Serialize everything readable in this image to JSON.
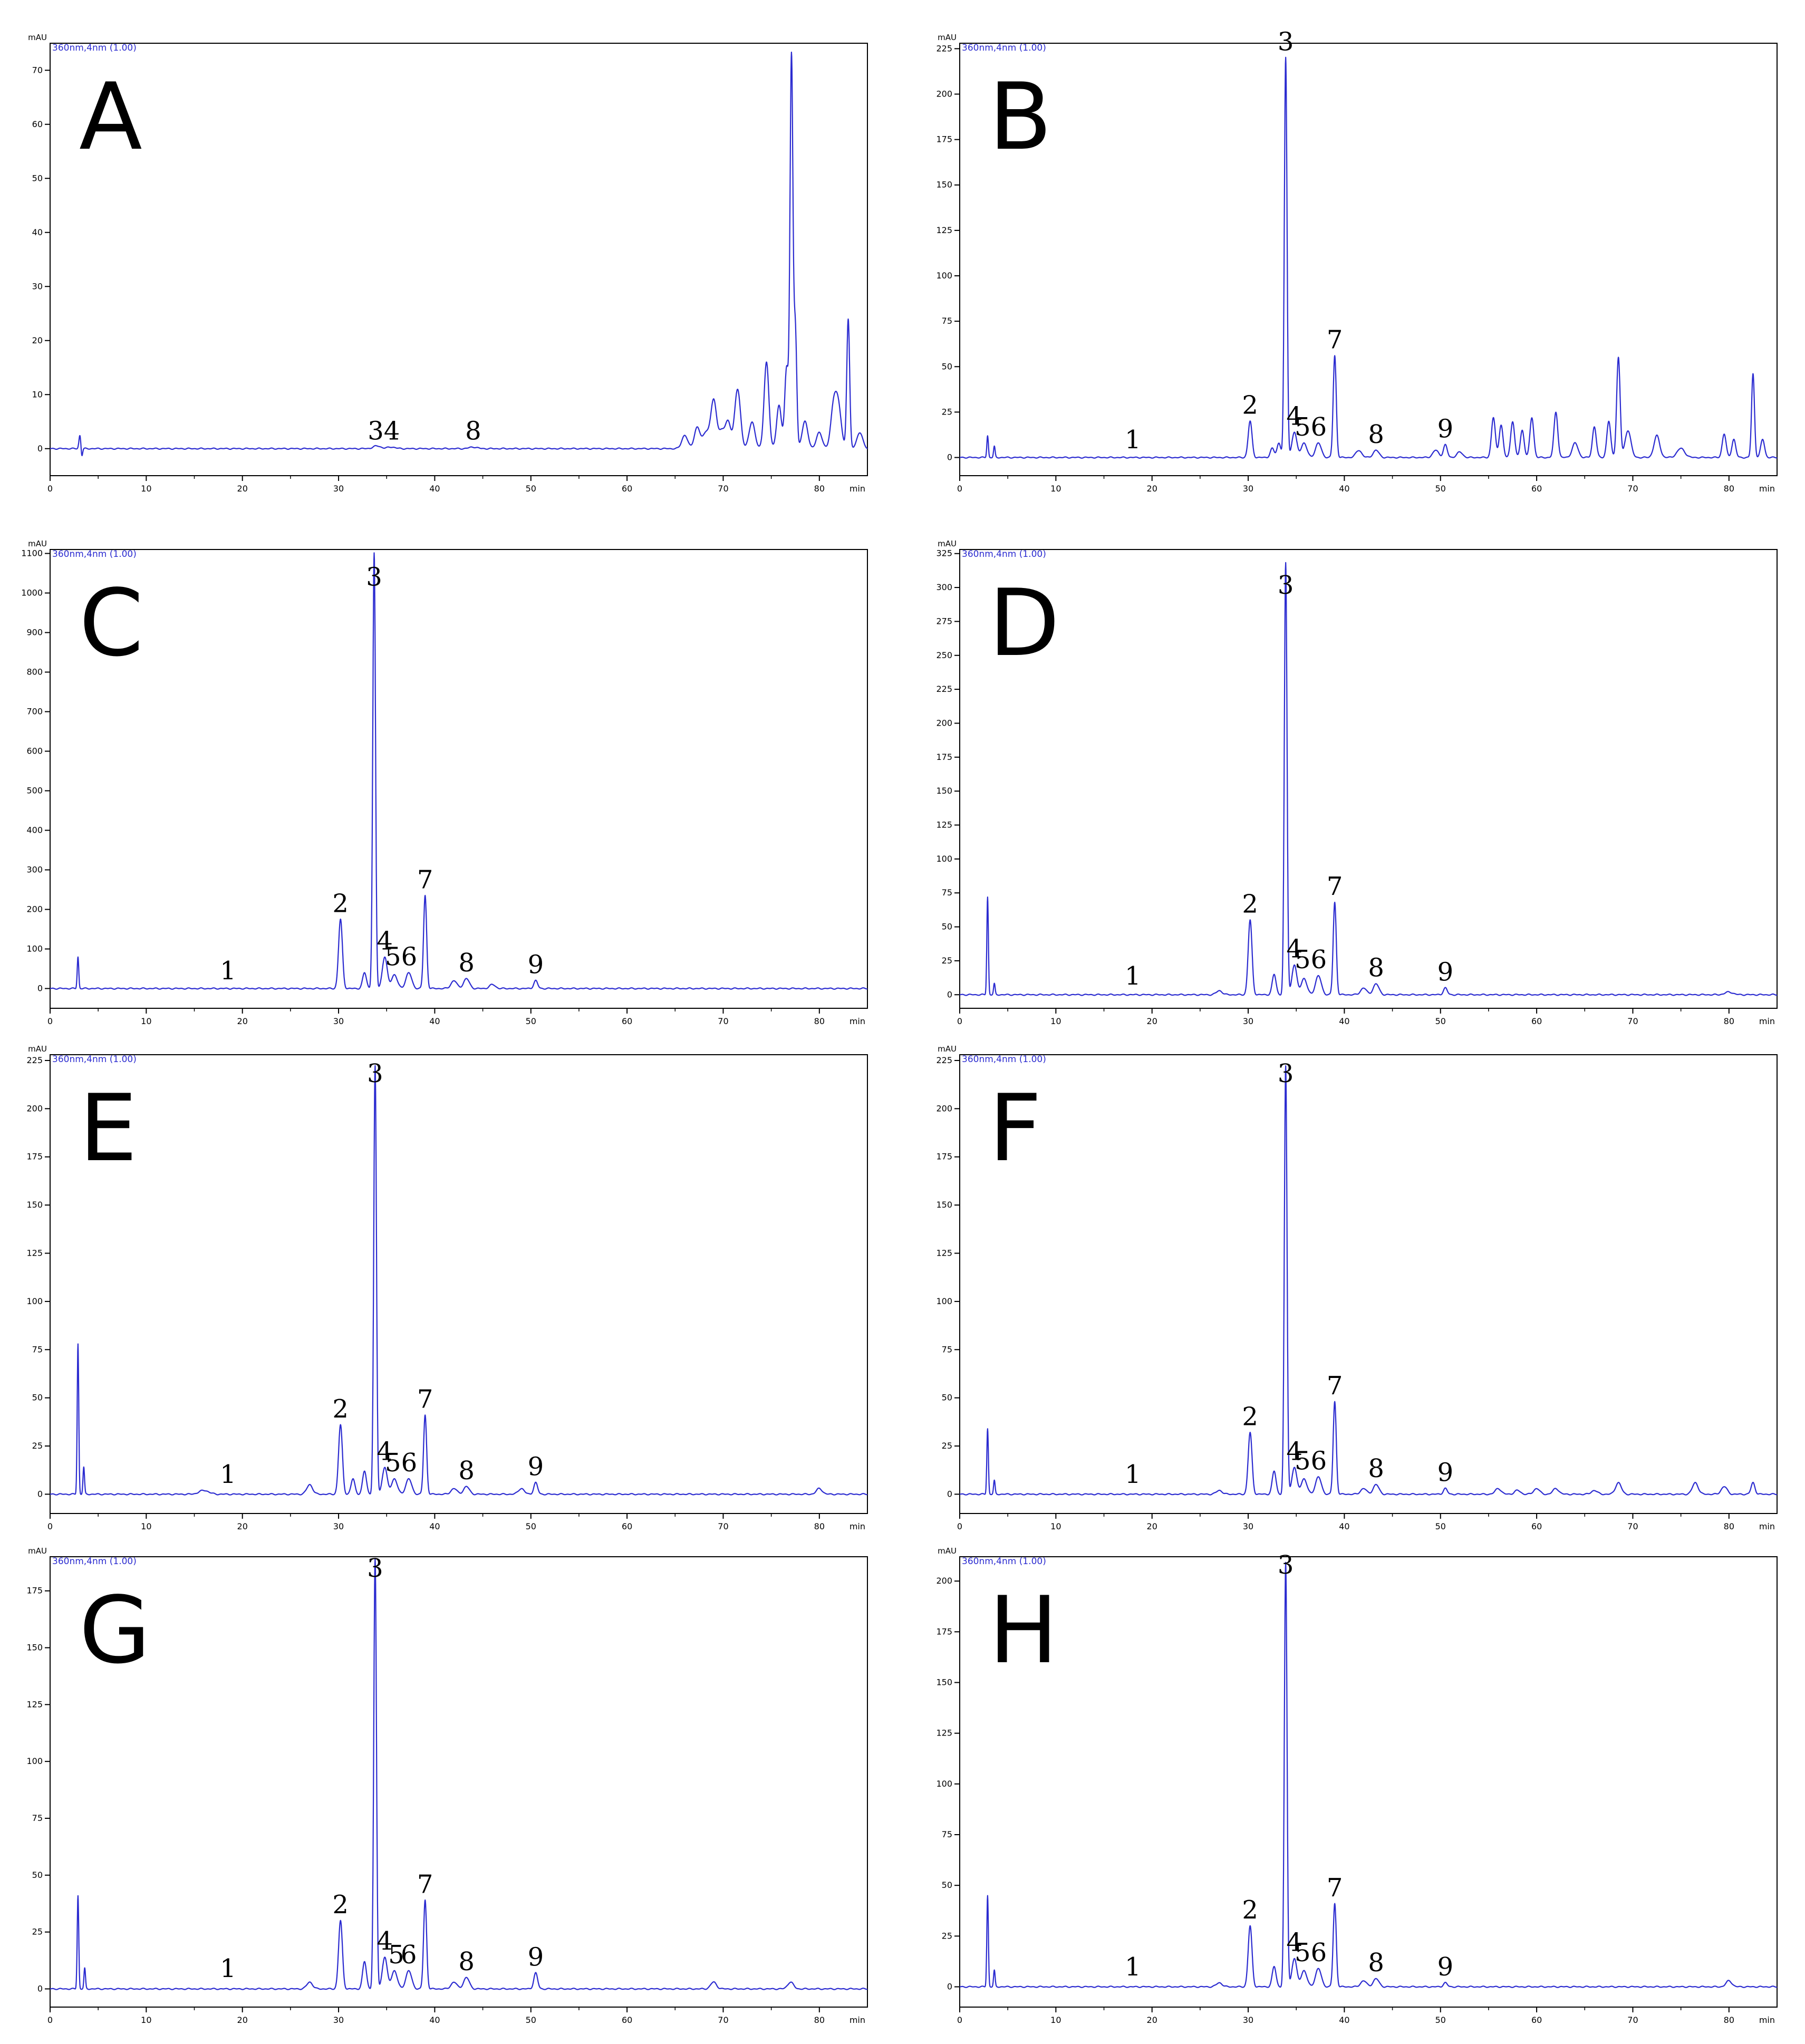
{
  "chart_data": [
    {
      "type": "line",
      "panel_label": "A",
      "ylabel": "mAU",
      "xlabel": "min",
      "channel": "360nm,4nm (1.00)",
      "ylim": [
        -5,
        75
      ],
      "yticks": [
        0,
        10,
        20,
        30,
        40,
        50,
        60,
        70
      ],
      "xlim": [
        0,
        85
      ],
      "xticks": [
        0,
        10,
        20,
        30,
        40,
        50,
        60,
        70,
        80
      ],
      "baseline": 0,
      "peaks": [
        [
          3.1,
          2.5,
          0.1
        ],
        [
          3.3,
          -1.5,
          0.08
        ],
        [
          34.0,
          0.5,
          0.4
        ],
        [
          35.5,
          0.3,
          0.4
        ],
        [
          44.0,
          0.3,
          0.4
        ],
        [
          66.0,
          2.5,
          0.3
        ],
        [
          67.3,
          4,
          0.3
        ],
        [
          68.2,
          3,
          0.3
        ],
        [
          69.0,
          9,
          0.3
        ],
        [
          69.8,
          3,
          0.3
        ],
        [
          70.5,
          5,
          0.3
        ],
        [
          71.5,
          11,
          0.3
        ],
        [
          73.0,
          5,
          0.3
        ],
        [
          74.5,
          16,
          0.25
        ],
        [
          75.8,
          8,
          0.25
        ],
        [
          76.6,
          15,
          0.2
        ],
        [
          77.1,
          72,
          0.15
        ],
        [
          77.5,
          22,
          0.15
        ],
        [
          78.5,
          5,
          0.3
        ],
        [
          80.0,
          3,
          0.3
        ],
        [
          81.5,
          8,
          0.3
        ],
        [
          82.0,
          7,
          0.3
        ],
        [
          83.0,
          24,
          0.15
        ],
        [
          84.2,
          3,
          0.3
        ]
      ],
      "annotations": [
        {
          "text": "34",
          "x": 34.7,
          "y": 0.3
        },
        {
          "text": "8",
          "x": 44.0,
          "y": 0.3
        }
      ]
    },
    {
      "type": "line",
      "panel_label": "B",
      "ylabel": "mAU",
      "xlabel": "min",
      "channel": "360nm,4nm (1.00)",
      "ylim": [
        -10,
        228
      ],
      "yticks": [
        0,
        25,
        50,
        75,
        100,
        125,
        150,
        175,
        200,
        225
      ],
      "xlim": [
        0,
        85
      ],
      "xticks": [
        0,
        10,
        20,
        30,
        40,
        50,
        60,
        70,
        80
      ],
      "baseline": 0,
      "peaks": [
        [
          2.9,
          12,
          0.08
        ],
        [
          3.6,
          6,
          0.08
        ],
        [
          30.2,
          20,
          0.2
        ],
        [
          32.5,
          5,
          0.2
        ],
        [
          33.2,
          8,
          0.2
        ],
        [
          33.9,
          220,
          0.14
        ],
        [
          34.8,
          14,
          0.25
        ],
        [
          35.8,
          8,
          0.3
        ],
        [
          37.3,
          8,
          0.3
        ],
        [
          39.0,
          56,
          0.16
        ],
        [
          41.5,
          4,
          0.3
        ],
        [
          43.3,
          4,
          0.3
        ],
        [
          49.5,
          4,
          0.3
        ],
        [
          50.5,
          7,
          0.2
        ],
        [
          52.0,
          3,
          0.3
        ],
        [
          55.5,
          22,
          0.2
        ],
        [
          56.3,
          18,
          0.2
        ],
        [
          57.5,
          20,
          0.2
        ],
        [
          58.5,
          15,
          0.2
        ],
        [
          59.5,
          22,
          0.2
        ],
        [
          62.0,
          25,
          0.2
        ],
        [
          64.0,
          8,
          0.3
        ],
        [
          66.0,
          17,
          0.2
        ],
        [
          67.5,
          20,
          0.2
        ],
        [
          68.5,
          55,
          0.18
        ],
        [
          69.5,
          15,
          0.3
        ],
        [
          72.5,
          12,
          0.3
        ],
        [
          75.0,
          5,
          0.4
        ],
        [
          79.5,
          13,
          0.2
        ],
        [
          80.5,
          10,
          0.2
        ],
        [
          82.5,
          46,
          0.15
        ],
        [
          83.5,
          10,
          0.2
        ]
      ],
      "annotations": [
        {
          "text": "3",
          "x": 33.9,
          "y": 220
        },
        {
          "text": "7",
          "x": 39.0,
          "y": 56
        },
        {
          "text": "2",
          "x": 30.2,
          "y": 20
        },
        {
          "text": "4",
          "x": 34.8,
          "y": 14
        },
        {
          "text": "56",
          "x": 36.5,
          "y": 8
        },
        {
          "text": "1",
          "x": 18.0,
          "y": 1
        },
        {
          "text": "8",
          "x": 43.3,
          "y": 4
        },
        {
          "text": "9",
          "x": 50.5,
          "y": 7
        }
      ]
    },
    {
      "type": "line",
      "panel_label": "C",
      "ylabel": "mAU",
      "xlabel": "min",
      "channel": "360nm,4nm (1.00)",
      "ylim": [
        -50,
        1110
      ],
      "yticks": [
        0,
        100,
        200,
        300,
        400,
        500,
        600,
        700,
        800,
        900,
        1000,
        1100
      ],
      "xlim": [
        0,
        85
      ],
      "xticks": [
        0,
        10,
        20,
        30,
        40,
        50,
        60,
        70,
        80
      ],
      "baseline": 0,
      "peaks": [
        [
          2.9,
          80,
          0.08
        ],
        [
          30.2,
          175,
          0.2
        ],
        [
          32.7,
          40,
          0.2
        ],
        [
          33.7,
          1100,
          0.14
        ],
        [
          34.8,
          80,
          0.25
        ],
        [
          35.8,
          35,
          0.3
        ],
        [
          37.3,
          40,
          0.3
        ],
        [
          39.0,
          235,
          0.16
        ],
        [
          42.0,
          20,
          0.3
        ],
        [
          43.3,
          25,
          0.3
        ],
        [
          46.0,
          10,
          0.3
        ],
        [
          50.5,
          20,
          0.2
        ]
      ],
      "annotations": [
        {
          "text": "3",
          "x": 33.7,
          "y": 1000
        },
        {
          "text": "7",
          "x": 39.0,
          "y": 235
        },
        {
          "text": "2",
          "x": 30.2,
          "y": 175
        },
        {
          "text": "4",
          "x": 34.8,
          "y": 80
        },
        {
          "text": "56",
          "x": 36.5,
          "y": 40
        },
        {
          "text": "1",
          "x": 18.5,
          "y": 5
        },
        {
          "text": "8",
          "x": 43.3,
          "y": 25
        },
        {
          "text": "9",
          "x": 50.5,
          "y": 20
        }
      ]
    },
    {
      "type": "line",
      "panel_label": "D",
      "ylabel": "mAU",
      "xlabel": "min",
      "channel": "360nm,4nm (1.00)",
      "ylim": [
        -10,
        328
      ],
      "yticks": [
        0,
        25,
        50,
        75,
        100,
        125,
        150,
        175,
        200,
        225,
        250,
        275,
        300,
        325
      ],
      "xlim": [
        0,
        85
      ],
      "xticks": [
        0,
        10,
        20,
        30,
        40,
        50,
        60,
        70,
        80
      ],
      "baseline": 0,
      "peaks": [
        [
          2.9,
          72,
          0.08
        ],
        [
          3.6,
          8,
          0.08
        ],
        [
          27.0,
          3,
          0.3
        ],
        [
          30.2,
          55,
          0.2
        ],
        [
          32.7,
          15,
          0.2
        ],
        [
          33.9,
          318,
          0.14
        ],
        [
          34.8,
          22,
          0.25
        ],
        [
          35.8,
          12,
          0.3
        ],
        [
          37.3,
          14,
          0.3
        ],
        [
          39.0,
          68,
          0.16
        ],
        [
          42.0,
          5,
          0.3
        ],
        [
          43.3,
          8,
          0.3
        ],
        [
          50.5,
          5,
          0.2
        ],
        [
          80.0,
          2,
          0.4
        ]
      ],
      "annotations": [
        {
          "text": "3",
          "x": 33.9,
          "y": 290
        },
        {
          "text": "7",
          "x": 39.0,
          "y": 68
        },
        {
          "text": "2",
          "x": 30.2,
          "y": 55
        },
        {
          "text": "4",
          "x": 34.8,
          "y": 22
        },
        {
          "text": "56",
          "x": 36.5,
          "y": 14
        },
        {
          "text": "1",
          "x": 18.0,
          "y": 2
        },
        {
          "text": "8",
          "x": 43.3,
          "y": 8
        },
        {
          "text": "9",
          "x": 50.5,
          "y": 5
        }
      ]
    },
    {
      "type": "line",
      "panel_label": "E",
      "ylabel": "mAU",
      "xlabel": "min",
      "channel": "360nm,4nm (1.00)",
      "ylim": [
        -10,
        228
      ],
      "yticks": [
        0,
        25,
        50,
        75,
        100,
        125,
        150,
        175,
        200,
        225
      ],
      "xlim": [
        0,
        85
      ],
      "xticks": [
        0,
        10,
        20,
        30,
        40,
        50,
        60,
        70,
        80
      ],
      "baseline": 0,
      "peaks": [
        [
          2.9,
          78,
          0.08
        ],
        [
          3.5,
          14,
          0.08
        ],
        [
          16.0,
          2,
          0.5
        ],
        [
          27.0,
          5,
          0.3
        ],
        [
          30.2,
          36,
          0.2
        ],
        [
          31.5,
          8,
          0.2
        ],
        [
          32.7,
          12,
          0.2
        ],
        [
          33.8,
          222,
          0.14
        ],
        [
          34.8,
          14,
          0.25
        ],
        [
          35.8,
          8,
          0.3
        ],
        [
          37.3,
          8,
          0.3
        ],
        [
          39.0,
          41,
          0.16
        ],
        [
          42.0,
          3,
          0.3
        ],
        [
          43.3,
          4,
          0.3
        ],
        [
          49.0,
          3,
          0.3
        ],
        [
          50.5,
          6,
          0.2
        ],
        [
          80.0,
          3,
          0.3
        ]
      ],
      "annotations": [
        {
          "text": "3",
          "x": 33.8,
          "y": 210
        },
        {
          "text": "7",
          "x": 39.0,
          "y": 41
        },
        {
          "text": "2",
          "x": 30.2,
          "y": 36
        },
        {
          "text": "4",
          "x": 34.8,
          "y": 14
        },
        {
          "text": "56",
          "x": 36.5,
          "y": 8
        },
        {
          "text": "1",
          "x": 18.5,
          "y": 2
        },
        {
          "text": "8",
          "x": 43.3,
          "y": 4
        },
        {
          "text": "9",
          "x": 50.5,
          "y": 6
        }
      ]
    },
    {
      "type": "line",
      "panel_label": "F",
      "ylabel": "mAU",
      "xlabel": "min",
      "channel": "360nm,4nm (1.00)",
      "ylim": [
        -10,
        228
      ],
      "yticks": [
        0,
        25,
        50,
        75,
        100,
        125,
        150,
        175,
        200,
        225
      ],
      "xlim": [
        0,
        85
      ],
      "xticks": [
        0,
        10,
        20,
        30,
        40,
        50,
        60,
        70,
        80
      ],
      "baseline": 0,
      "peaks": [
        [
          2.9,
          34,
          0.08
        ],
        [
          3.6,
          7,
          0.08
        ],
        [
          27.0,
          2,
          0.3
        ],
        [
          30.2,
          32,
          0.2
        ],
        [
          32.7,
          12,
          0.2
        ],
        [
          33.9,
          222,
          0.14
        ],
        [
          34.8,
          14,
          0.25
        ],
        [
          35.8,
          8,
          0.3
        ],
        [
          37.3,
          9,
          0.3
        ],
        [
          39.0,
          48,
          0.16
        ],
        [
          42.0,
          3,
          0.3
        ],
        [
          43.3,
          5,
          0.3
        ],
        [
          50.5,
          3,
          0.2
        ],
        [
          56.0,
          3,
          0.3
        ],
        [
          58.0,
          2,
          0.3
        ],
        [
          60.0,
          3,
          0.3
        ],
        [
          62.0,
          3,
          0.3
        ],
        [
          66.0,
          2,
          0.3
        ],
        [
          68.5,
          6,
          0.3
        ],
        [
          76.5,
          6,
          0.3
        ],
        [
          79.5,
          4,
          0.3
        ],
        [
          82.5,
          6,
          0.2
        ]
      ],
      "annotations": [
        {
          "text": "3",
          "x": 33.9,
          "y": 210
        },
        {
          "text": "7",
          "x": 39.0,
          "y": 48
        },
        {
          "text": "2",
          "x": 30.2,
          "y": 32
        },
        {
          "text": "4",
          "x": 34.8,
          "y": 14
        },
        {
          "text": "56",
          "x": 36.5,
          "y": 9
        },
        {
          "text": "1",
          "x": 18.0,
          "y": 2
        },
        {
          "text": "8",
          "x": 43.3,
          "y": 5
        },
        {
          "text": "9",
          "x": 50.5,
          "y": 3
        }
      ]
    },
    {
      "type": "line",
      "panel_label": "G",
      "ylabel": "mAU",
      "xlabel": "min",
      "channel": "360nm,4nm (1.00)",
      "ylim": [
        -8,
        190
      ],
      "yticks": [
        0,
        25,
        50,
        75,
        100,
        125,
        150,
        175
      ],
      "xlim": [
        0,
        85
      ],
      "xticks": [
        0,
        10,
        20,
        30,
        40,
        50,
        60,
        70,
        80
      ],
      "baseline": 0,
      "peaks": [
        [
          2.9,
          41,
          0.08
        ],
        [
          3.6,
          9,
          0.08
        ],
        [
          27.0,
          3,
          0.3
        ],
        [
          30.2,
          30,
          0.2
        ],
        [
          32.7,
          12,
          0.2
        ],
        [
          33.8,
          189,
          0.14
        ],
        [
          34.8,
          14,
          0.25
        ],
        [
          35.8,
          8,
          0.3
        ],
        [
          37.3,
          8,
          0.3
        ],
        [
          39.0,
          39,
          0.16
        ],
        [
          42.0,
          3,
          0.3
        ],
        [
          43.3,
          5,
          0.3
        ],
        [
          50.5,
          7,
          0.2
        ],
        [
          69.0,
          3,
          0.3
        ],
        [
          77.0,
          3,
          0.3
        ]
      ],
      "annotations": [
        {
          "text": "3",
          "x": 33.8,
          "y": 178
        },
        {
          "text": "7",
          "x": 39.0,
          "y": 39
        },
        {
          "text": "2",
          "x": 30.2,
          "y": 30
        },
        {
          "text": "4",
          "x": 34.8,
          "y": 14
        },
        {
          "text": "5",
          "x": 36.0,
          "y": 8
        },
        {
          "text": "6",
          "x": 37.3,
          "y": 8
        },
        {
          "text": "1",
          "x": 18.5,
          "y": 2
        },
        {
          "text": "8",
          "x": 43.3,
          "y": 5
        },
        {
          "text": "9",
          "x": 50.5,
          "y": 7
        }
      ]
    },
    {
      "type": "line",
      "panel_label": "H",
      "ylabel": "mAU",
      "xlabel": "min",
      "channel": "360nm,4nm (1.00)",
      "ylim": [
        -10,
        212
      ],
      "yticks": [
        0,
        25,
        50,
        75,
        100,
        125,
        150,
        175,
        200
      ],
      "xlim": [
        0,
        85
      ],
      "xticks": [
        0,
        10,
        20,
        30,
        40,
        50,
        60,
        70,
        80
      ],
      "baseline": 0,
      "peaks": [
        [
          2.9,
          45,
          0.08
        ],
        [
          3.6,
          8,
          0.08
        ],
        [
          27.0,
          2,
          0.3
        ],
        [
          30.2,
          30,
          0.2
        ],
        [
          32.7,
          10,
          0.2
        ],
        [
          33.9,
          209,
          0.14
        ],
        [
          34.8,
          14,
          0.25
        ],
        [
          35.8,
          8,
          0.3
        ],
        [
          37.3,
          9,
          0.3
        ],
        [
          39.0,
          41,
          0.16
        ],
        [
          42.0,
          3,
          0.3
        ],
        [
          43.3,
          4,
          0.3
        ],
        [
          50.5,
          2,
          0.2
        ],
        [
          80.0,
          3,
          0.3
        ]
      ],
      "annotations": [
        {
          "text": "3",
          "x": 33.9,
          "y": 200
        },
        {
          "text": "7",
          "x": 39.0,
          "y": 41
        },
        {
          "text": "2",
          "x": 30.2,
          "y": 30
        },
        {
          "text": "4",
          "x": 34.8,
          "y": 14
        },
        {
          "text": "56",
          "x": 36.5,
          "y": 9
        },
        {
          "text": "1",
          "x": 18.0,
          "y": 2
        },
        {
          "text": "8",
          "x": 43.3,
          "y": 4
        },
        {
          "text": "9",
          "x": 50.5,
          "y": 2
        }
      ]
    }
  ],
  "colors": {
    "trace": "#2b2bd0",
    "axis": "#000000",
    "text": "#000000"
  }
}
